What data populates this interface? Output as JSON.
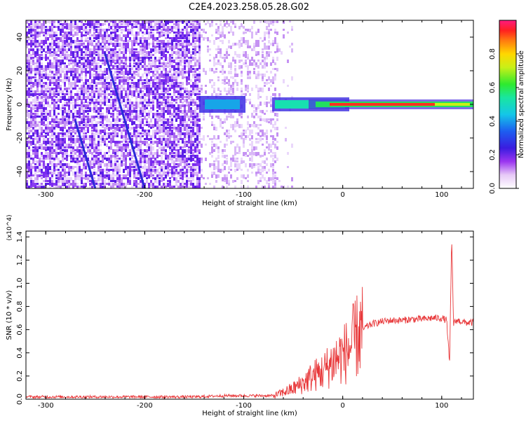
{
  "title": "C2E4.2023.258.05.28.G02",
  "chart_data": [
    {
      "type": "heatmap",
      "xlabel": "Height of straight line (km)",
      "ylabel": "Frequency (Hz)",
      "xlim": [
        -320,
        132
      ],
      "ylim": [
        -50,
        50
      ],
      "xticks": [
        "-300",
        "-200",
        "-100",
        "0",
        "100"
      ],
      "yticks": [
        "-40",
        "-20",
        "0",
        "20",
        "40"
      ],
      "colorbar": {
        "label": "Normalized spectral amplitude",
        "range": [
          0,
          1
        ],
        "ticks": [
          "0.0",
          "0.2",
          "0.4",
          "0.6",
          "0.8"
        ]
      },
      "features": [
        {
          "description": "broadband noise",
          "x_range": [
            -320,
            -65
          ],
          "freq_range": [
            -50,
            50
          ]
        },
        {
          "description": "diagonal trace",
          "points": [
            [
              -240,
              30
            ],
            [
              -200,
              -50
            ]
          ]
        },
        {
          "description": "diagonal trace",
          "points": [
            [
              -270,
              -10
            ],
            [
              -250,
              -50
            ]
          ]
        },
        {
          "description": "narrowband carrier near 0 Hz",
          "x_range": [
            -145,
            132
          ],
          "freq": 0
        }
      ]
    },
    {
      "type": "line",
      "xlabel": "Height of straight line (km)",
      "ylabel": "SNR (10 * v/v)",
      "scale_label": "(x10^4)",
      "xlim": [
        -320,
        132
      ],
      "ylim": [
        0,
        1.45
      ],
      "xticks": [
        "-300",
        "-200",
        "-100",
        "0",
        "100"
      ],
      "yticks": [
        "0.0",
        "0.2",
        "0.4",
        "0.6",
        "0.8",
        "1.0",
        "1.2",
        "1.4"
      ],
      "color": "#e8383a",
      "series": [
        {
          "x": [
            -320,
            -300,
            -250,
            -200,
            -150,
            -120,
            -110,
            -100,
            -70,
            -60,
            -50,
            -40,
            -30,
            -25,
            -20,
            -15,
            -10,
            -5,
            0,
            5,
            10,
            15,
            20,
            25,
            30,
            40,
            50,
            60,
            70,
            80,
            90,
            100,
            105,
            108,
            110,
            112,
            115,
            120,
            125,
            132
          ],
          "y": [
            0.02,
            0.02,
            0.02,
            0.02,
            0.02,
            0.03,
            0.03,
            0.03,
            0.03,
            0.06,
            0.09,
            0.14,
            0.2,
            0.22,
            0.24,
            0.28,
            0.32,
            0.36,
            0.38,
            0.42,
            0.48,
            0.55,
            0.6,
            0.63,
            0.65,
            0.67,
            0.68,
            0.68,
            0.69,
            0.69,
            0.7,
            0.7,
            0.68,
            0.3,
            1.4,
            0.65,
            0.68,
            0.67,
            0.66,
            0.66
          ]
        }
      ]
    }
  ]
}
